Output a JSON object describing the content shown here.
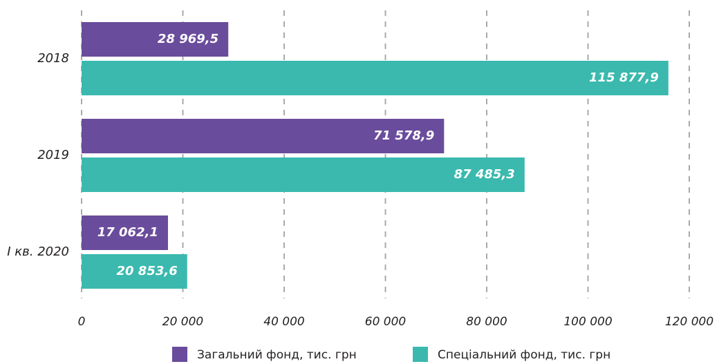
{
  "chart_data": {
    "type": "bar",
    "orientation": "horizontal",
    "categories": [
      "2018",
      "2019",
      "I кв. 2020"
    ],
    "series": [
      {
        "name": "Загальний фонд, тис. грн",
        "color": "#6a4c9c",
        "values": [
          28969.5,
          71578.9,
          17062.1
        ],
        "value_labels": [
          "28 969,5",
          "71 578,9",
          "17 062,1"
        ]
      },
      {
        "name": "Спеціальний фонд, тис. грн",
        "color": "#3bb9ae",
        "values": [
          115877.9,
          87485.3,
          20853.6
        ],
        "value_labels": [
          "115 877,9",
          "87 485,3",
          "20 853,6"
        ]
      }
    ],
    "xlim": [
      0,
      120000
    ],
    "xticks": [
      0,
      {
        "value": 20000,
        "label": "20 000"
      },
      {
        "value": 40000,
        "label": "40 000"
      },
      {
        "value": 60000,
        "label": "60 000"
      },
      {
        "value": 80000,
        "label": "80 000"
      },
      {
        "value": 100000,
        "label": "100 000"
      },
      {
        "value": 120000,
        "label": "120 000"
      }
    ],
    "grid": true,
    "legend": "bottom"
  }
}
